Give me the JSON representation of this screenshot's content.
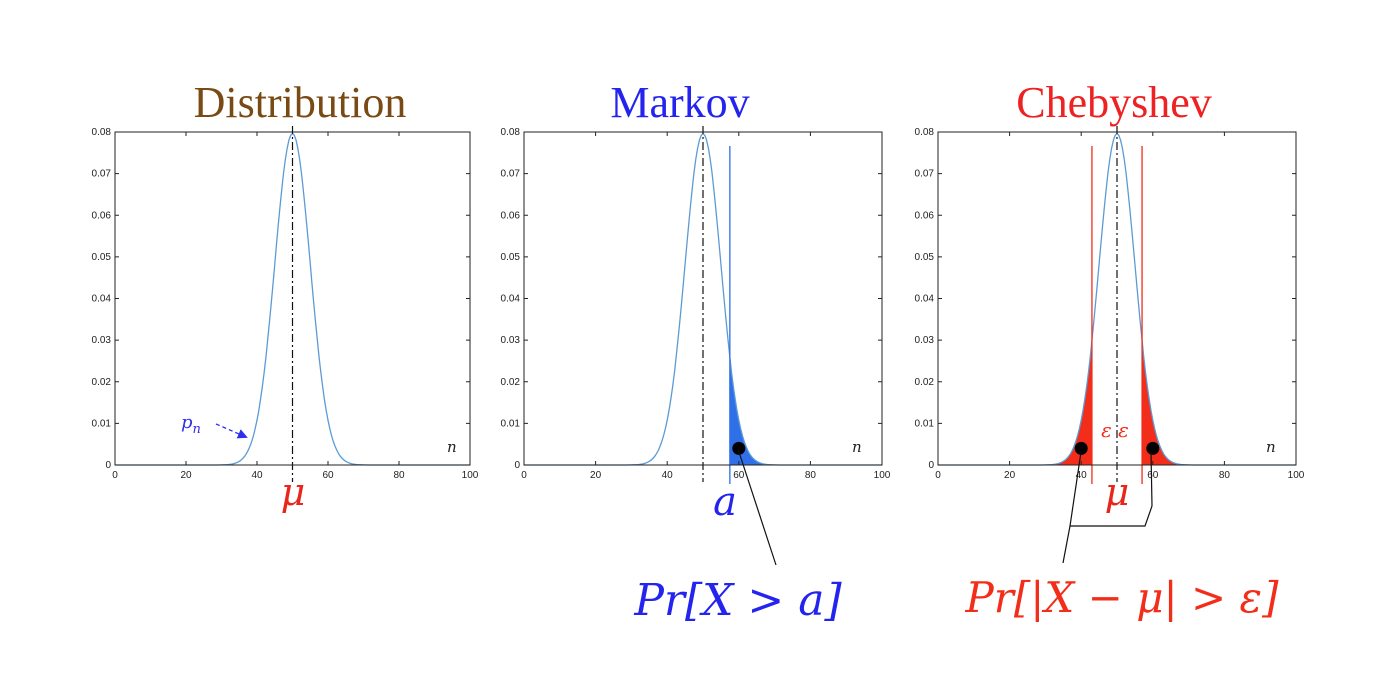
{
  "colors": {
    "curve": "#5b9bd5",
    "markov": "#2f6fe8",
    "chebyshev": "#f22d1a",
    "distribution_title": "#7a4a14",
    "markov_title": "#2424ee",
    "mu_label": "#e8261c",
    "axis": "#222222"
  },
  "chart_data": [
    {
      "type": "line",
      "title": "Distribution",
      "x": [
        0,
        20,
        40,
        50,
        60,
        80,
        100
      ],
      "series": [
        {
          "values": [
            0,
            0,
            0.011,
            0.0796,
            0.011,
            0,
            0
          ]
        }
      ],
      "xlim": [
        0,
        100
      ],
      "ylim": [
        0,
        0.08
      ],
      "xticks": [
        "0",
        "20",
        "40",
        "60",
        "80",
        "100"
      ],
      "yticks": [
        "0",
        "0.01",
        "0.02",
        "0.03",
        "0.04",
        "0.05",
        "0.06",
        "0.07",
        "0.08"
      ],
      "mean": 50,
      "xlabel": "n",
      "curve_label": "p_n",
      "mean_label": "μ",
      "grid": false
    },
    {
      "type": "area",
      "title": "Markov",
      "x": [
        0,
        20,
        40,
        50,
        60,
        80,
        100
      ],
      "series": [
        {
          "values": [
            0,
            0,
            0.011,
            0.0796,
            0.011,
            0,
            0
          ]
        }
      ],
      "xlim": [
        0,
        100
      ],
      "ylim": [
        0,
        0.08
      ],
      "xticks": [
        "0",
        "20",
        "40",
        "60",
        "80",
        "100"
      ],
      "yticks": [
        "0",
        "0.01",
        "0.02",
        "0.03",
        "0.04",
        "0.05",
        "0.06",
        "0.07",
        "0.08"
      ],
      "mean": 50,
      "threshold": 57.5,
      "shaded_region": [
        57.5,
        70
      ],
      "marker_x": 60,
      "marker_y": 0.004,
      "xlabel": "n",
      "threshold_label": "a",
      "probability_label": "Pr[X > a]",
      "grid": false
    },
    {
      "type": "area",
      "title": "Chebyshev",
      "x": [
        0,
        20,
        40,
        50,
        60,
        80,
        100
      ],
      "series": [
        {
          "values": [
            0,
            0,
            0.011,
            0.0796,
            0.011,
            0,
            0
          ]
        }
      ],
      "xlim": [
        0,
        100
      ],
      "ylim": [
        0,
        0.08
      ],
      "xticks": [
        "0",
        "20",
        "40",
        "60",
        "80",
        "100"
      ],
      "yticks": [
        "0",
        "0.01",
        "0.02",
        "0.03",
        "0.04",
        "0.05",
        "0.06",
        "0.07",
        "0.08"
      ],
      "mean": 50,
      "lower_bound": 43,
      "upper_bound": 57,
      "shaded_regions": [
        [
          30,
          43
        ],
        [
          57,
          70
        ]
      ],
      "marker_x": [
        40,
        60
      ],
      "marker_y": 0.004,
      "xlabel": "n",
      "epsilon_label": "ε ε",
      "mean_label": "μ",
      "probability_label": "Pr[|X − μ| > ε]",
      "grid": false
    }
  ]
}
